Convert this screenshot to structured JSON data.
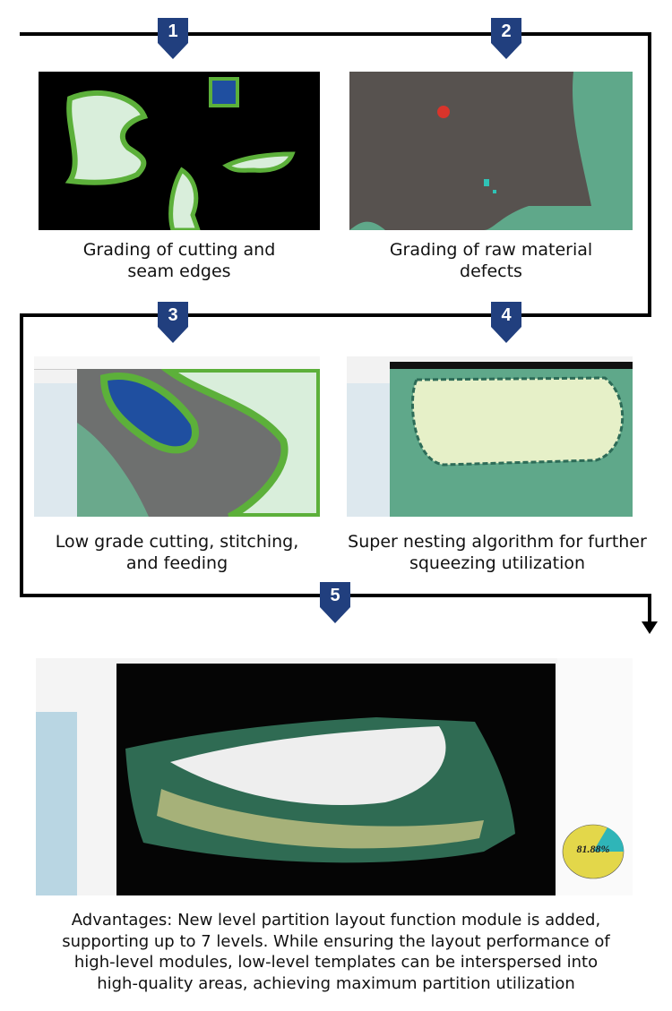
{
  "steps": [
    {
      "number": "1",
      "caption": [
        "Grading of cutting and",
        "seam edges"
      ]
    },
    {
      "number": "2",
      "caption": [
        "Grading of raw material",
        "defects"
      ]
    },
    {
      "number": "3",
      "caption": [
        "Low grade cutting, stitching,",
        "and feeding"
      ]
    },
    {
      "number": "4",
      "caption": [
        "Super nesting algorithm for further",
        "squeezing utilization"
      ]
    },
    {
      "number": "5",
      "utilization": "81.88%"
    }
  ],
  "advantages": [
    "Advantages: New level partition layout function module is added,",
    "supporting up to 7 levels. While ensuring the layout performance of",
    "high-level modules, low-level templates can be interspersed into",
    "high-quality areas, achieving maximum partition utilization"
  ],
  "colors": {
    "badge": "#213f7e",
    "line": "#000000",
    "piece": "#d9eedb",
    "edge": "#5cb03a"
  }
}
